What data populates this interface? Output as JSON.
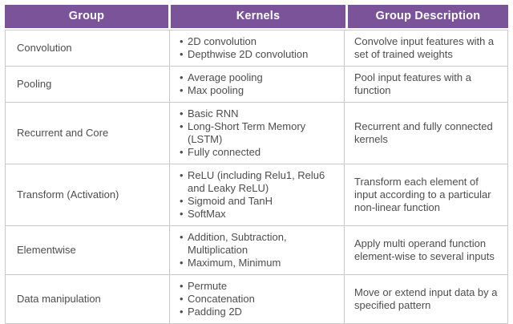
{
  "theme": {
    "header_bg": "#7b5399",
    "header_text": "#ffffff",
    "body_text": "#4d4d4d",
    "border": "#c9c9c9"
  },
  "table": {
    "headers": [
      "Group",
      "Kernels",
      "Group Description"
    ],
    "rows": [
      {
        "group": "Convolution",
        "kernels": [
          "2D convolution",
          "Depthwise 2D convolution"
        ],
        "description": "Convolve input features with a set of trained weights"
      },
      {
        "group": "Pooling",
        "kernels": [
          "Average pooling",
          "Max pooling"
        ],
        "description": "Pool input features with a function"
      },
      {
        "group": "Recurrent and Core",
        "kernels": [
          "Basic RNN",
          "Long-Short Term Memory (LSTM)",
          "Fully connected"
        ],
        "description": "Recurrent and fully connected kernels"
      },
      {
        "group": "Transform (Activation)",
        "kernels": [
          "ReLU (including Relu1, Relu6 and Leaky ReLU)",
          "Sigmoid and TanH",
          "SoftMax"
        ],
        "description": "Transform each element of input according to a particular non-linear function"
      },
      {
        "group": "Elementwise",
        "kernels": [
          "Addition, Subtraction, Multiplication",
          "Maximum, Minimum"
        ],
        "description": "Apply multi operand function element-wise to several inputs"
      },
      {
        "group": "Data manipulation",
        "kernels": [
          "Permute",
          "Concatenation",
          "Padding 2D"
        ],
        "description": "Move or extend input data by a specified pattern"
      }
    ]
  }
}
